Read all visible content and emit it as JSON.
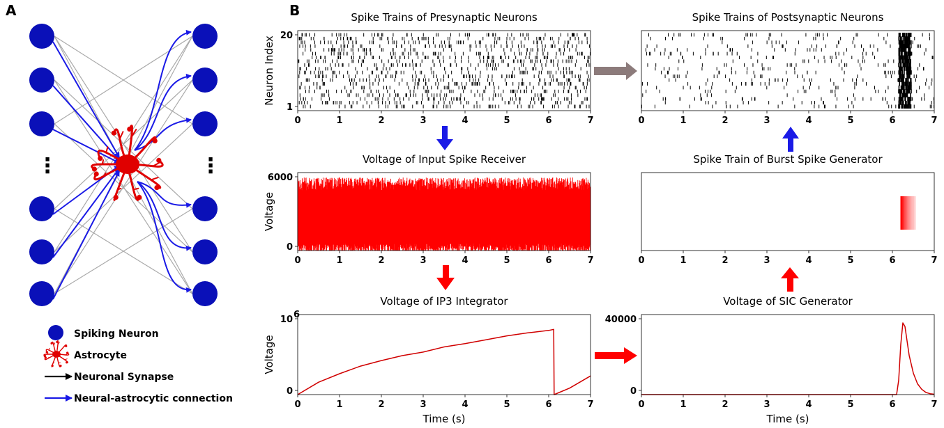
{
  "panel_a": {
    "label": "A",
    "legend": {
      "spiking_neuron": "Spiking Neuron",
      "astrocyte": "Astrocyte",
      "neuronal_synapse": "Neuronal Synapse",
      "neural_astrocytic": "Neural-astrocytic connection"
    },
    "colors": {
      "neuron": "#0a10b8",
      "astrocyte": "#e00000",
      "neural_astro": "#1a1ae6",
      "synapse": "#aaaaaa"
    }
  },
  "panel_b": {
    "label": "B"
  },
  "chart_data": [
    {
      "id": "presyn",
      "type": "scatter",
      "title": "Spike Trains of Presynaptic Neurons",
      "xlabel": "",
      "ylabel": "Neuron Index",
      "xlim": [
        0,
        7
      ],
      "ylim": [
        1,
        20
      ],
      "xticks": [
        "0",
        "1",
        "2",
        "3",
        "4",
        "5",
        "6",
        "7"
      ],
      "yticks": [
        "1",
        "20"
      ],
      "series": [
        {
          "kind": "raster",
          "neurons": 20,
          "rate_hz": 8,
          "burst_window": null
        }
      ]
    },
    {
      "id": "postsyn",
      "type": "scatter",
      "title": "Spike Trains of Postsynaptic Neurons",
      "xlabel": "",
      "ylabel": "",
      "xlim": [
        0,
        7
      ],
      "ylim": [
        1,
        20
      ],
      "xticks": [
        "0",
        "1",
        "2",
        "3",
        "4",
        "5",
        "6",
        "7"
      ],
      "yticks": [],
      "series": [
        {
          "kind": "raster",
          "neurons": 20,
          "rate_hz": 3,
          "burst_window": [
            6.15,
            6.45
          ]
        }
      ]
    },
    {
      "id": "receiver",
      "type": "area",
      "title": "Voltage of Input Spike Receiver",
      "xlabel": "",
      "ylabel": "Voltage",
      "xlim": [
        0,
        7
      ],
      "ylim": [
        0,
        6000
      ],
      "yticks": [
        "0",
        "6000"
      ],
      "xticks": [
        "0",
        "1",
        "2",
        "3",
        "4",
        "5",
        "6",
        "7"
      ],
      "series": [
        {
          "kind": "dense",
          "max": 6300,
          "color": "#ff0000"
        }
      ]
    },
    {
      "id": "burst",
      "type": "scatter",
      "title": "Spike Train of Burst Spike Generator",
      "xlabel": "",
      "ylabel": "",
      "xlim": [
        0,
        7
      ],
      "xticks": [
        "0",
        "1",
        "2",
        "3",
        "4",
        "5",
        "6",
        "7"
      ],
      "yticks": [],
      "series": [
        {
          "kind": "burst",
          "x_start": 6.2,
          "x_end": 6.55,
          "color": "#ff0000"
        }
      ]
    },
    {
      "id": "ip3",
      "type": "line",
      "title": "Voltage of IP3 Integrator",
      "xlabel": "Time (s)",
      "ylabel": "Voltage",
      "xlim": [
        0,
        7
      ],
      "ylim": [
        0,
        1000000
      ],
      "ytick_labels": [
        "0",
        "10"
      ],
      "ytick_exponent": "6",
      "xticks": [
        "0",
        "1",
        "2",
        "3",
        "4",
        "5",
        "6",
        "7"
      ],
      "series": [
        {
          "color": "#d00000",
          "x": [
            0,
            0.5,
            1,
            1.5,
            2,
            2.5,
            3,
            3.5,
            4,
            4.5,
            5,
            5.5,
            6,
            6.12,
            6.13,
            6.5,
            7
          ],
          "y": [
            0,
            170000,
            300000,
            390000,
            470000,
            540000,
            600000,
            660000,
            720000,
            770000,
            820000,
            860000,
            900000,
            910000,
            0,
            90000,
            260000
          ]
        }
      ]
    },
    {
      "id": "sic",
      "type": "line",
      "title": "Voltage of SIC Generator",
      "xlabel": "Time (s)",
      "ylabel": "",
      "xlim": [
        0,
        7
      ],
      "ylim": [
        0,
        40000
      ],
      "yticks": [
        "0",
        "40000"
      ],
      "xticks": [
        "0",
        "1",
        "2",
        "3",
        "4",
        "5",
        "6",
        "7"
      ],
      "series": [
        {
          "color": "#d00000",
          "x": [
            0,
            6.1,
            6.15,
            6.2,
            6.25,
            6.3,
            6.35,
            6.4,
            6.5,
            6.6,
            6.7,
            6.8,
            6.9,
            7
          ],
          "y": [
            0,
            0,
            8000,
            28000,
            40000,
            38000,
            30000,
            22000,
            12000,
            6000,
            3000,
            1200,
            500,
            200
          ]
        }
      ]
    }
  ]
}
